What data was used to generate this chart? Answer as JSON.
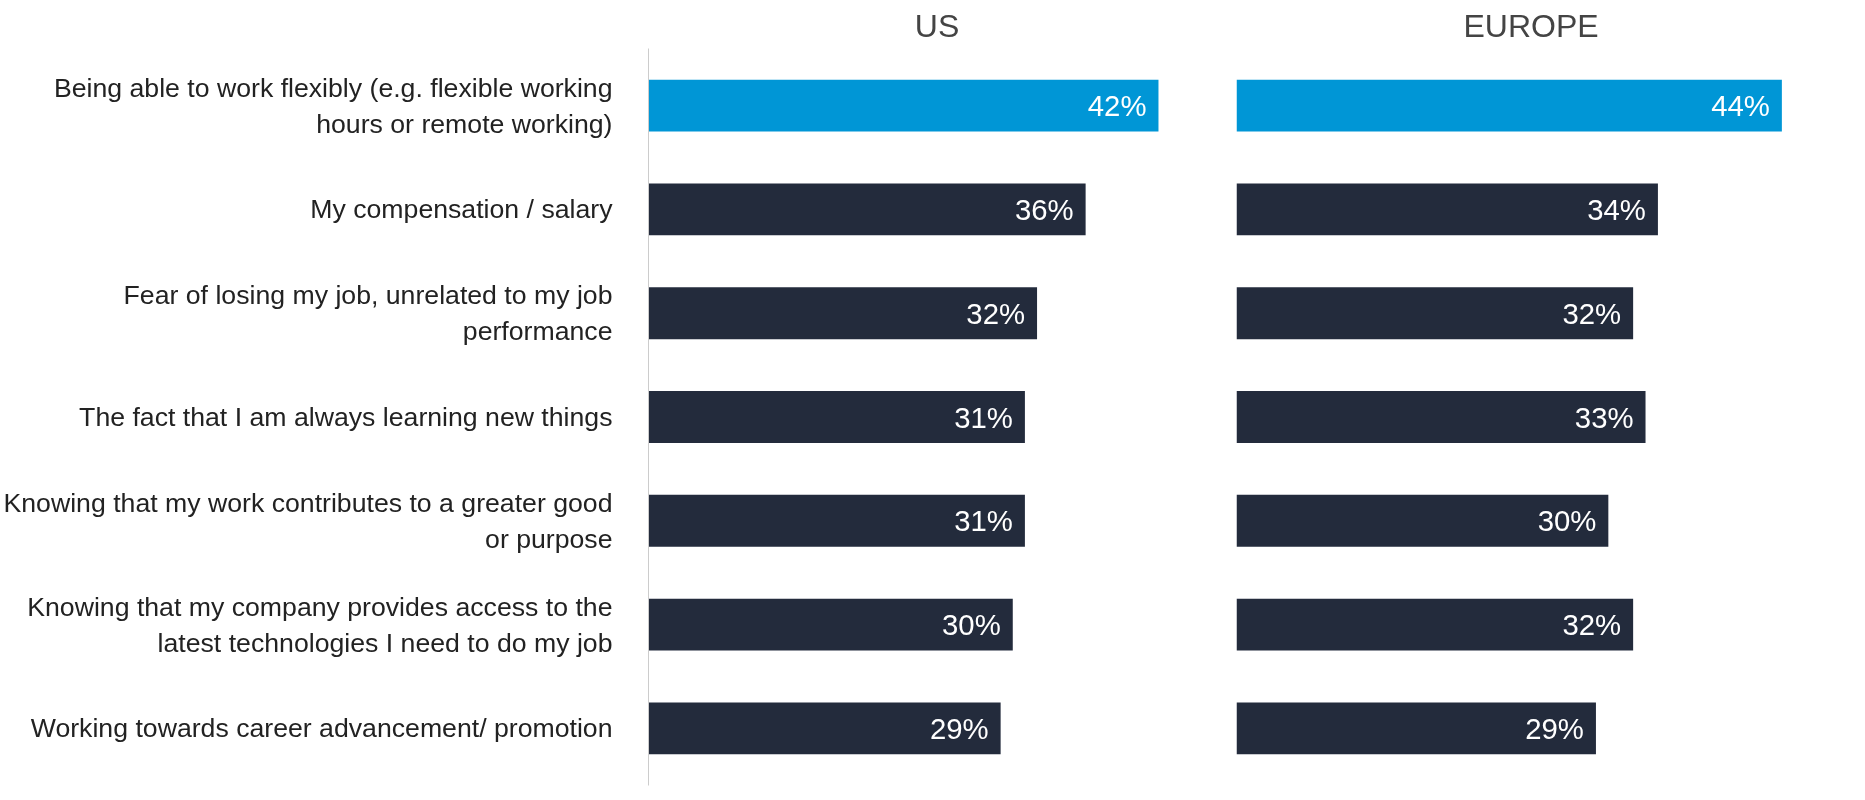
{
  "chart_data": [
    {
      "type": "bar",
      "orientation": "horizontal",
      "title": "US",
      "categories": [
        "Being able to work flexibly (e.g. flexible working hours or remote working)",
        "My compensation / salary",
        "Fear of losing my job, unrelated to my job performance",
        "The fact that I am always learning new things",
        "Knowing that my work contributes to a greater good or purpose",
        "Knowing that my company provides access to the latest technologies I need to do my job",
        "Working towards career advancement/ promotion"
      ],
      "values": [
        42,
        36,
        32,
        31,
        31,
        30,
        29
      ],
      "value_labels": [
        "42%",
        "36%",
        "32%",
        "31%",
        "31%",
        "30%",
        "29%"
      ],
      "colors": [
        "#0096d6",
        "#232b3c",
        "#232b3c",
        "#232b3c",
        "#232b3c",
        "#232b3c",
        "#232b3c"
      ]
    },
    {
      "type": "bar",
      "orientation": "horizontal",
      "title": "EUROPE",
      "categories": [
        "Being able to work flexibly (e.g. flexible working hours or remote working)",
        "My compensation / salary",
        "Fear of losing my job, unrelated to my job performance",
        "The fact that I am always learning new things",
        "Knowing that my work contributes to a greater good or purpose",
        "Knowing that my company provides access to the latest technologies I need to do my job",
        "Working towards career advancement/ promotion"
      ],
      "values": [
        44,
        34,
        32,
        33,
        30,
        32,
        29
      ],
      "value_labels": [
        "44%",
        "34%",
        "32%",
        "33%",
        "30%",
        "32%",
        "29%"
      ],
      "colors": [
        "#0096d6",
        "#232b3c",
        "#232b3c",
        "#232b3c",
        "#232b3c",
        "#232b3c",
        "#232b3c"
      ],
      "tick_labels": false
    }
  ]
}
